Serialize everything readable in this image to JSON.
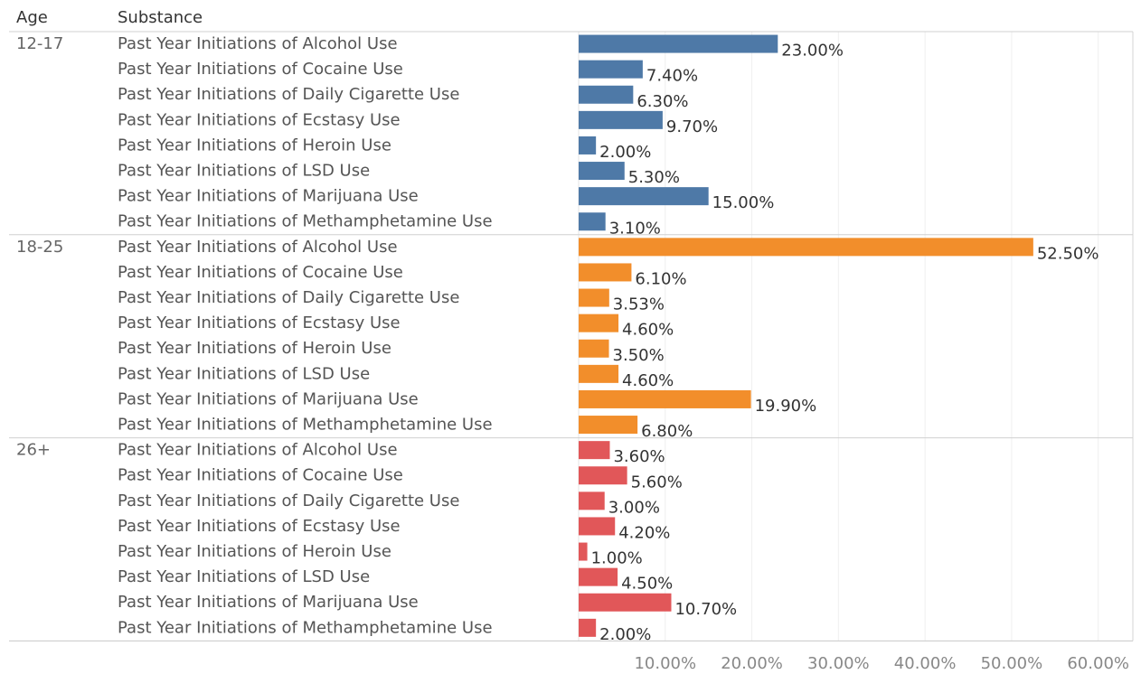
{
  "chart_data": {
    "type": "bar",
    "orientation": "horizontal",
    "header": {
      "age": "Age",
      "substance": "Substance"
    },
    "substances": [
      "Past Year Initiations of Alcohol Use",
      "Past Year Initiations of Cocaine Use",
      "Past Year Initiations of Daily Cigarette Use",
      "Past Year Initiations of Ecstasy Use",
      "Past Year Initiations of Heroin Use",
      "Past Year Initiations of LSD Use",
      "Past Year Initiations of Marijuana Use",
      "Past Year Initiations of Methamphetamine Use"
    ],
    "groups": [
      {
        "age": "12-17",
        "color": "#4e79a7",
        "values": [
          23.0,
          7.4,
          6.3,
          9.7,
          2.0,
          5.3,
          15.0,
          3.1
        ],
        "labels": [
          "23.00%",
          "7.40%",
          "6.30%",
          "9.70%",
          "2.00%",
          "5.30%",
          "15.00%",
          "3.10%"
        ]
      },
      {
        "age": "18-25",
        "color": "#f28e2b",
        "values": [
          52.5,
          6.1,
          3.53,
          4.6,
          3.5,
          4.6,
          19.9,
          6.8
        ],
        "labels": [
          "52.50%",
          "6.10%",
          "3.53%",
          "4.60%",
          "3.50%",
          "4.60%",
          "19.90%",
          "6.80%"
        ]
      },
      {
        "age": "26+",
        "color": "#e15759",
        "values": [
          3.6,
          5.6,
          3.0,
          4.2,
          1.0,
          4.5,
          10.7,
          2.0
        ],
        "labels": [
          "3.60%",
          "5.60%",
          "3.00%",
          "4.20%",
          "1.00%",
          "4.50%",
          "10.70%",
          "2.00%"
        ]
      }
    ],
    "xlim": [
      0,
      64
    ],
    "xticks": [
      10,
      20,
      30,
      40,
      50,
      60
    ],
    "xtick_labels": [
      "10.00%",
      "20.00%",
      "30.00%",
      "40.00%",
      "50.00%",
      "60.00%"
    ],
    "grid": true
  }
}
